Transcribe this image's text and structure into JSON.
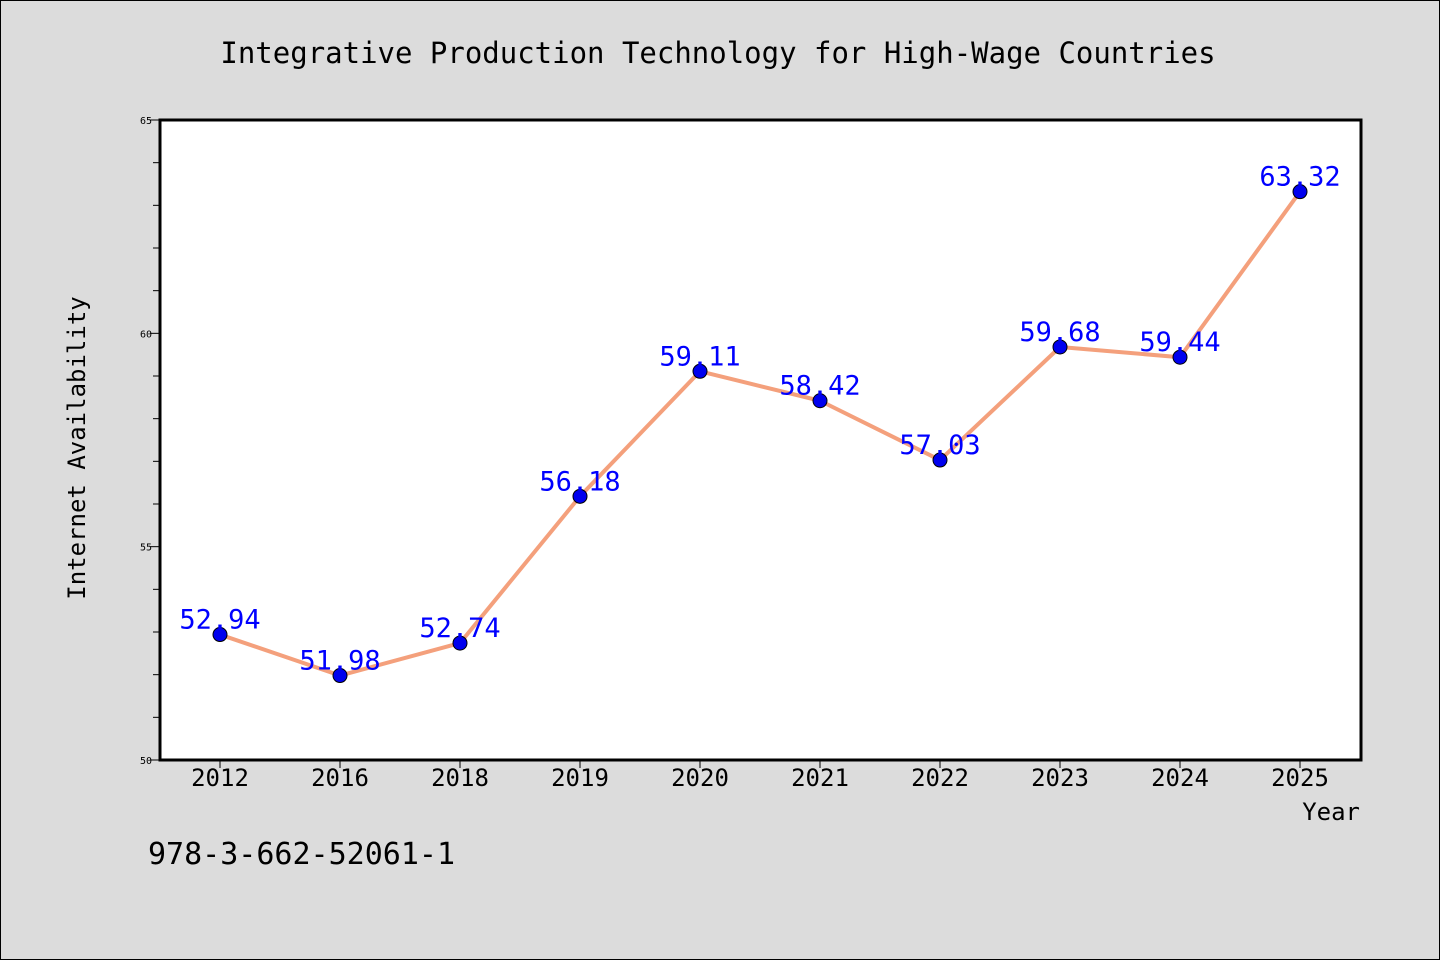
{
  "chart_data": {
    "type": "line",
    "title": "Integrative Production Technology for High-Wage Countries",
    "xlabel": "Year",
    "ylabel": "Internet Availability",
    "categories": [
      "2012",
      "2016",
      "2018",
      "2019",
      "2020",
      "2021",
      "2022",
      "2023",
      "2024",
      "2025"
    ],
    "series": [
      {
        "values": [
          52.94,
          51.98,
          52.74,
          56.18,
          59.11,
          58.42,
          57.03,
          59.68,
          59.44,
          63.32
        ]
      }
    ],
    "data_labels": [
      "52.94",
      "51.98",
      "52.74",
      "56.18",
      "59.11",
      "58.42",
      "57.03",
      "59.68",
      "59.44",
      "63.32"
    ],
    "ylim": [
      50,
      65
    ],
    "yticks": [
      50,
      55,
      60,
      65
    ],
    "ytick_labels": [
      "50",
      "55",
      "60",
      "65"
    ],
    "grid": false,
    "line_color": "#f4a07c",
    "marker_color": "#0000ee",
    "label_color": "#0000ff",
    "background_color": "#dcdcdc",
    "plot_background_color": "#ffffff"
  },
  "footnote": "978-3-662-52061-1"
}
